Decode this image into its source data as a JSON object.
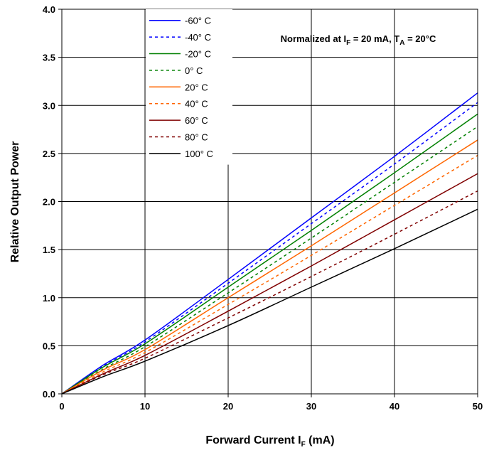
{
  "chart_data": {
    "type": "line",
    "title": "",
    "xlabel": {
      "main": "Forward Current I",
      "sub": "F",
      "tail": " (mA)"
    },
    "ylabel": "Relative Output Power",
    "xlim": [
      0,
      50
    ],
    "ylim": [
      0,
      4.0
    ],
    "x_ticks": [
      0,
      10,
      20,
      30,
      40,
      50
    ],
    "x_tick_labels": [
      "0",
      "10",
      "20",
      "30",
      "40",
      "50"
    ],
    "y_ticks": [
      0,
      0.5,
      1.0,
      1.5,
      2.0,
      2.5,
      3.0,
      3.5,
      4.0
    ],
    "y_tick_labels": [
      "0.0",
      "0.5",
      "1.0",
      "1.5",
      "2.0",
      "2.5",
      "3.0",
      "3.5",
      "4.0"
    ],
    "grid": true,
    "legend_position": "top-left",
    "annotation": {
      "parts": [
        {
          "text": "Normalized at I",
          "sub": false
        },
        {
          "text": "F",
          "sub": true
        },
        {
          "text": " = 20 mA, T",
          "sub": false
        },
        {
          "text": "A",
          "sub": true
        },
        {
          "text": " = 20°C",
          "sub": false
        }
      ]
    },
    "x": [
      0,
      5,
      10,
      20,
      30,
      40,
      50
    ],
    "series": [
      {
        "name": "-60° C",
        "color": "#0000ff",
        "dash": "solid",
        "values": [
          0.0,
          0.3,
          0.56,
          1.19,
          1.83,
          2.47,
          3.13
        ]
      },
      {
        "name": "-40° C",
        "color": "#0000ff",
        "dash": "dashed",
        "values": [
          0.0,
          0.29,
          0.54,
          1.15,
          1.77,
          2.39,
          3.03
        ]
      },
      {
        "name": "-20° C",
        "color": "#008000",
        "dash": "solid",
        "values": [
          0.0,
          0.28,
          0.52,
          1.11,
          1.7,
          2.3,
          2.91
        ]
      },
      {
        "name": "0° C",
        "color": "#008000",
        "dash": "dashed",
        "values": [
          0.0,
          0.26,
          0.49,
          1.05,
          1.62,
          2.2,
          2.78
        ]
      },
      {
        "name": "20° C",
        "color": "#ff6600",
        "dash": "solid",
        "values": [
          0.0,
          0.25,
          0.46,
          1.0,
          1.54,
          2.09,
          2.64
        ]
      },
      {
        "name": "40° C",
        "color": "#ff6600",
        "dash": "dashed",
        "values": [
          0.0,
          0.23,
          0.43,
          0.93,
          1.44,
          1.96,
          2.48
        ]
      },
      {
        "name": "60° C",
        "color": "#800000",
        "dash": "solid",
        "values": [
          0.0,
          0.21,
          0.4,
          0.86,
          1.33,
          1.81,
          2.29
        ]
      },
      {
        "name": "80° C",
        "color": "#800000",
        "dash": "dashed",
        "values": [
          0.0,
          0.2,
          0.37,
          0.79,
          1.22,
          1.66,
          2.11
        ]
      },
      {
        "name": "100° C",
        "color": "#000000",
        "dash": "solid",
        "values": [
          0.0,
          0.18,
          0.34,
          0.71,
          1.11,
          1.51,
          1.92
        ]
      }
    ]
  }
}
